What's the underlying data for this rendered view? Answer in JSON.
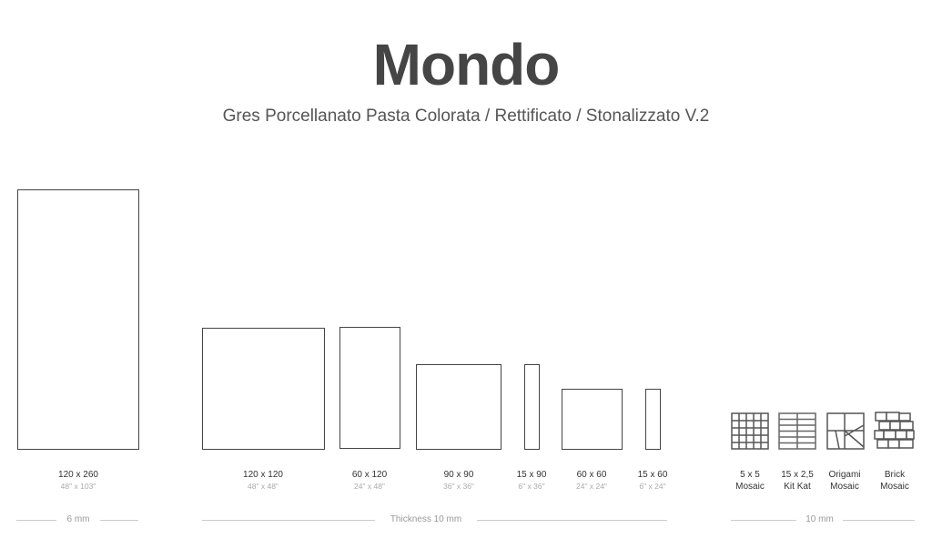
{
  "header": {
    "title": "Mondo",
    "subtitle": "Gres Porcellanato Pasta Colorata / Rettificato / Stonalizzato V.2"
  },
  "tiles": [
    {
      "size": "120 x 260",
      "inches": "48\" x 103\""
    },
    {
      "size": "120 x 120",
      "inches": "48\" x 48\""
    },
    {
      "size": "60 x 120",
      "inches": "24\" x 48\""
    },
    {
      "size": "90 x 90",
      "inches": "36\" x 36\""
    },
    {
      "size": "15 x 90",
      "inches": "6\" x 36\""
    },
    {
      "size": "60 x 60",
      "inches": "24\" x 24\""
    },
    {
      "size": "15 x 60",
      "inches": "6\" x 24\""
    }
  ],
  "mosaics": [
    {
      "line1": "5 x 5",
      "line2": "Mosaic",
      "icon": "grid-mosaic-icon"
    },
    {
      "line1": "15 x 2,5",
      "line2": "Kit Kat",
      "icon": "kitkat-mosaic-icon"
    },
    {
      "line1": "Origami",
      "line2": "Mosaic",
      "icon": "origami-mosaic-icon"
    },
    {
      "line1": "Brick",
      "line2": "Mosaic",
      "icon": "brick-mosaic-icon"
    }
  ],
  "thickness": {
    "group1": "6 mm",
    "group2": "Thickness 10 mm",
    "group3": "10 mm"
  }
}
